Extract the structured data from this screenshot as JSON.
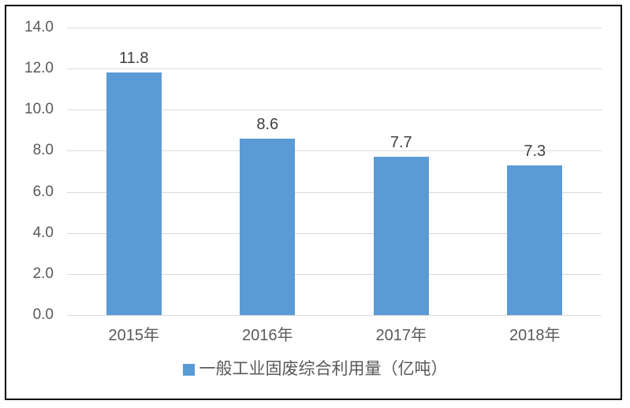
{
  "chart_data": {
    "type": "bar",
    "title": "",
    "xlabel": "",
    "ylabel": "",
    "categories": [
      "2015年",
      "2016年",
      "2017年",
      "2018年"
    ],
    "values": [
      11.8,
      8.6,
      7.7,
      7.3
    ],
    "data_labels": [
      "11.8",
      "8.6",
      "7.7",
      "7.3"
    ],
    "ylim": [
      0,
      14
    ],
    "ytick_step": 2,
    "yticks": [
      14,
      12,
      10,
      8,
      6,
      4,
      2,
      0
    ],
    "ytick_labels": [
      "14.0",
      "12.0",
      "10.0",
      "8.0",
      "6.0",
      "4.0",
      "2.0",
      "0.0"
    ],
    "grid": true,
    "legend_position": "bottom",
    "legend": [
      {
        "label": "一般工业固废综合利用量（亿吨）",
        "color": "#5B9BD5"
      }
    ],
    "colors": {
      "bar": "#5B9BD5",
      "gridline": "#D9D9D9",
      "axis_text": "#595959",
      "data_label": "#404040",
      "frame_border": "#000000",
      "background": "#FFFFFF"
    }
  }
}
